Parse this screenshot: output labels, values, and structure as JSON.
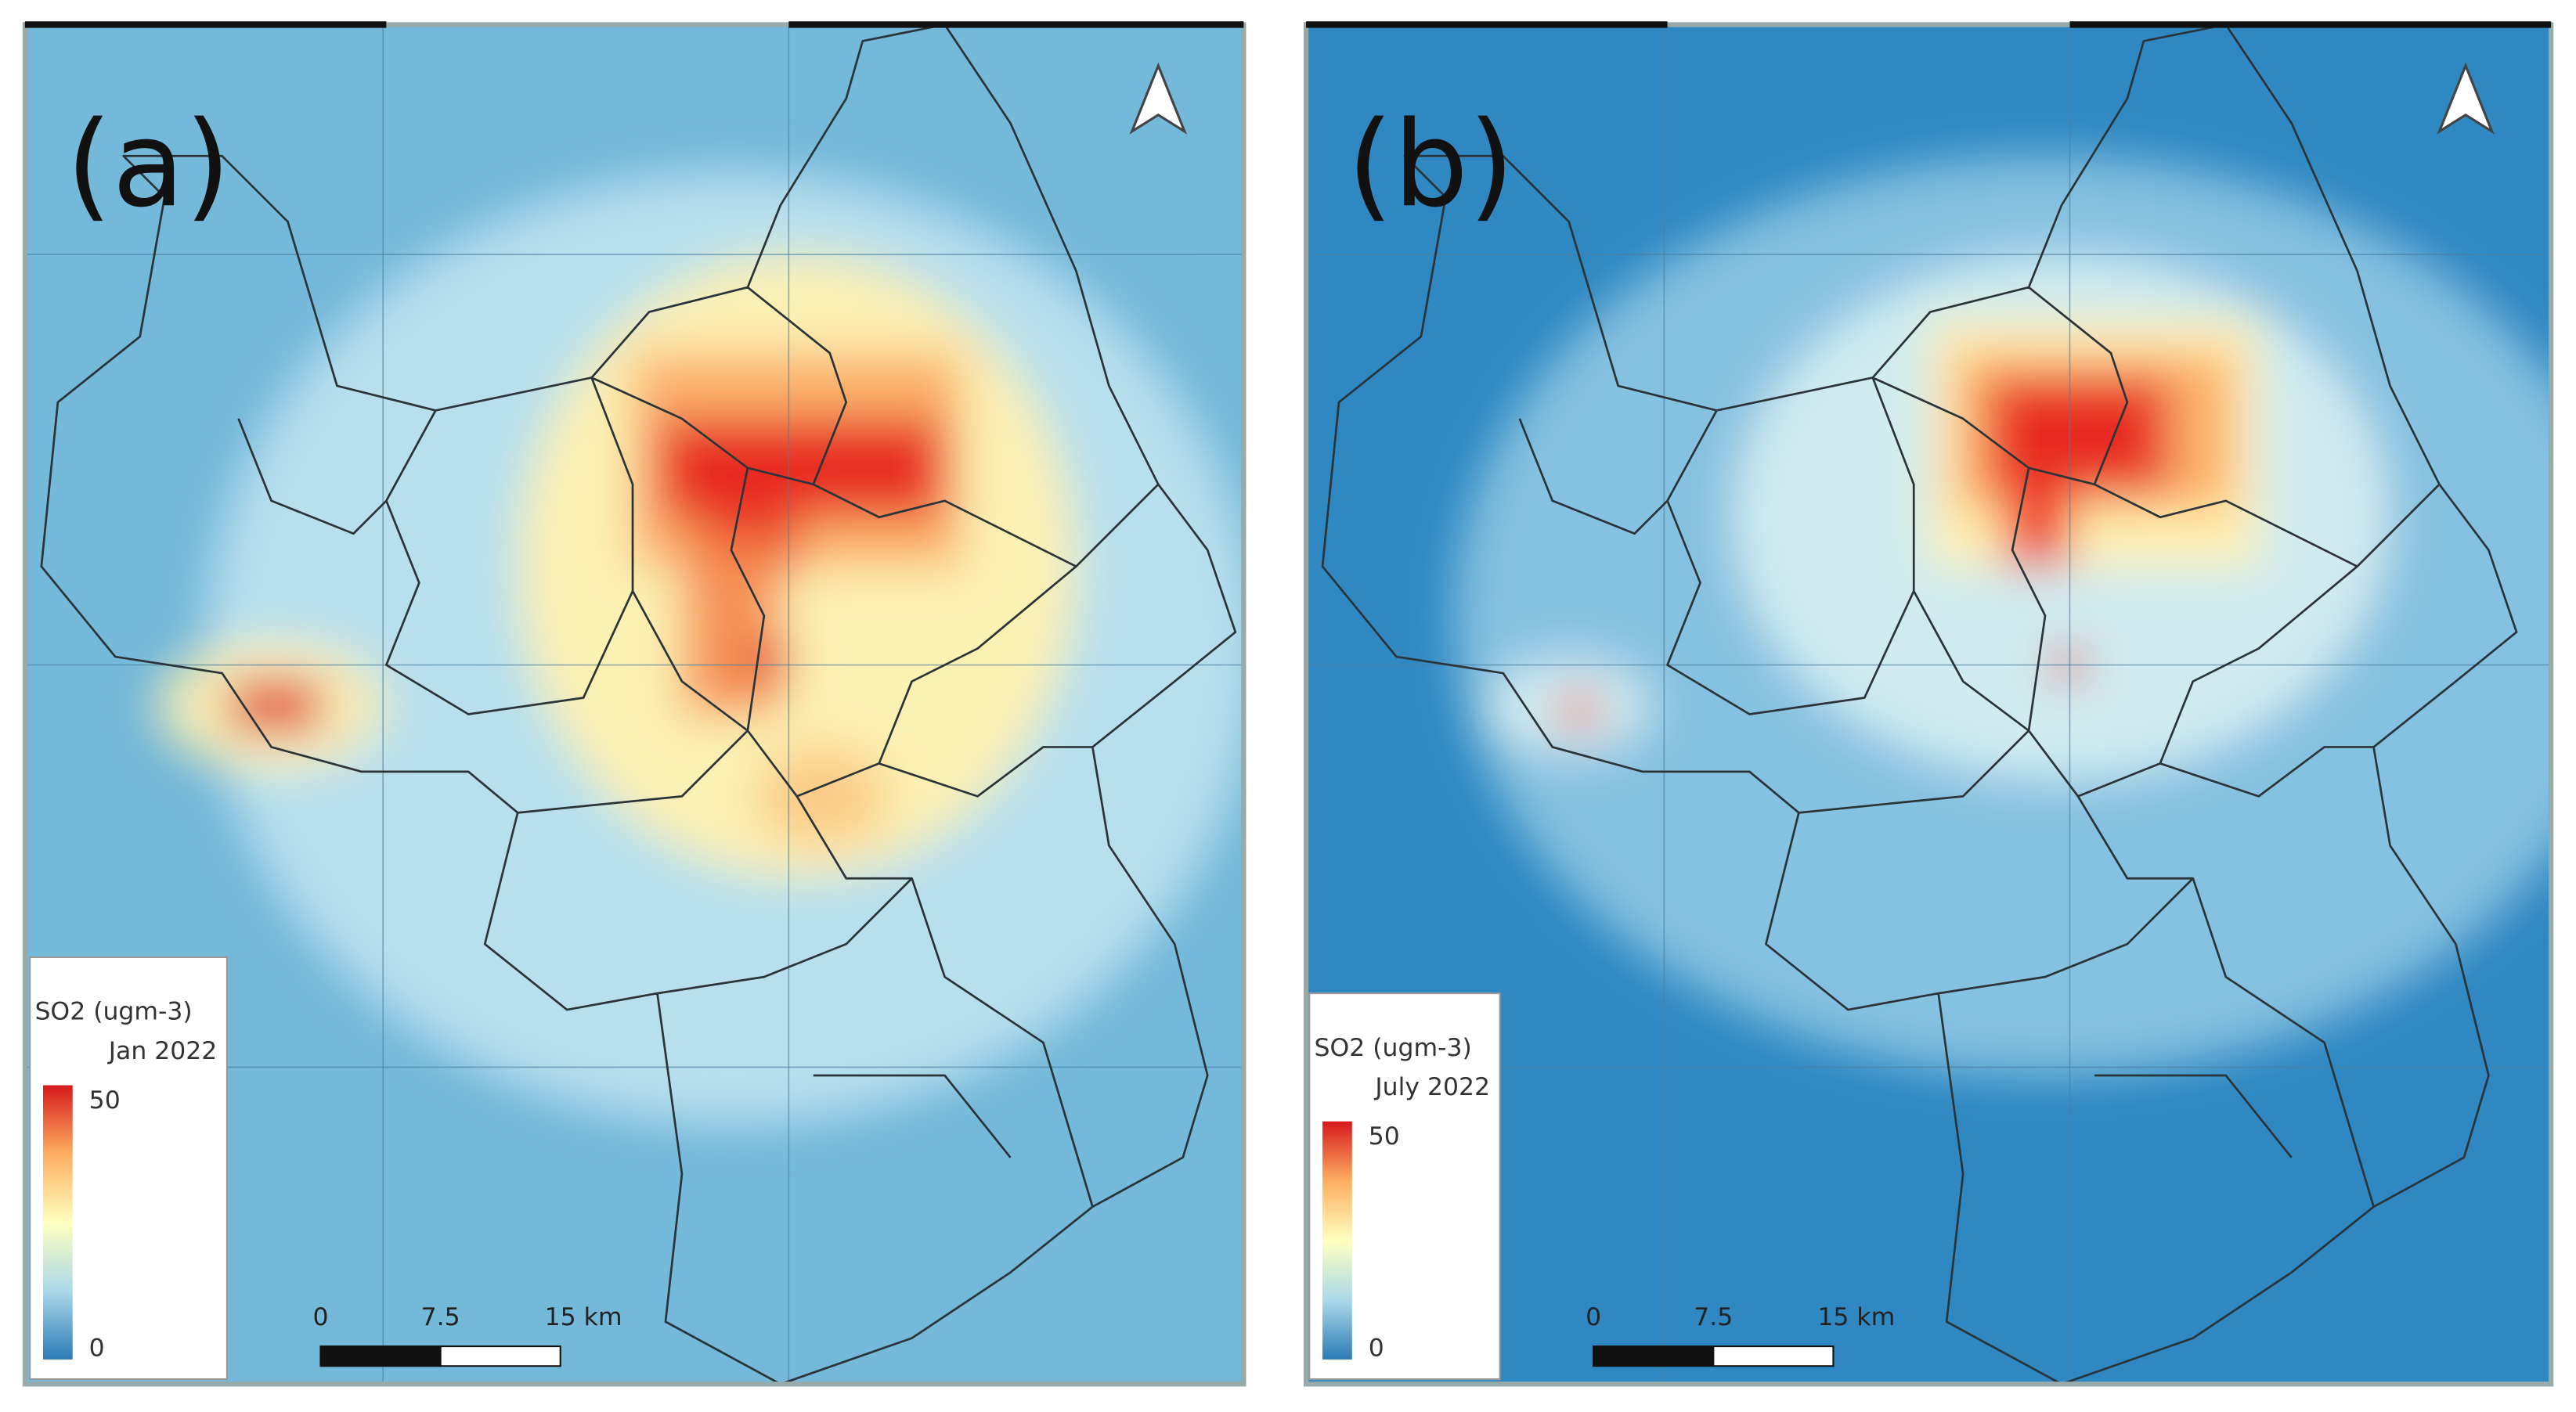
{
  "panels": [
    {
      "label": "(a)",
      "legend": {
        "title": "SO2 (ugm-3)",
        "period": "Jan 2022",
        "max": "50",
        "min": "0"
      },
      "scale_bar": [
        "0",
        "7.5",
        "15 km"
      ]
    },
    {
      "label": "(b)",
      "legend": {
        "title": "SO2 (ugm-3)",
        "period": "July 2022",
        "max": "50",
        "min": "0"
      },
      "scale_bar": [
        "0",
        "7.5",
        "15 km"
      ]
    }
  ]
}
